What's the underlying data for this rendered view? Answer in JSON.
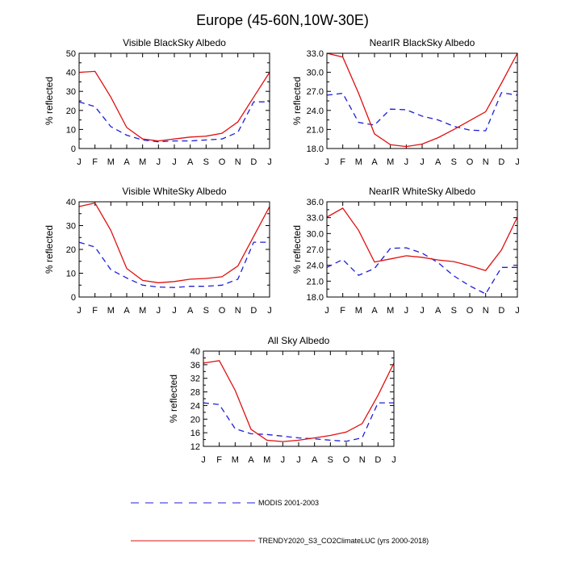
{
  "title": "Europe (45-60N,10W-30E)",
  "months": [
    "J",
    "F",
    "M",
    "A",
    "M",
    "J",
    "J",
    "A",
    "S",
    "O",
    "N",
    "D",
    "J"
  ],
  "colors": {
    "modis": "#1f1fd6",
    "trendy": "#e01010",
    "axis": "#000000"
  },
  "legend": [
    {
      "label": "MODIS 2001-2003",
      "style": "dashed",
      "color": "#1f1fd6"
    },
    {
      "label": "TRENDY2020_S3_CO2ClimateLUC (yrs 2000-2018)",
      "style": "solid",
      "color": "#e01010"
    }
  ],
  "chart_data": [
    {
      "type": "line",
      "title": "Visible BlackSky Albedo",
      "ylabel": "% reflected",
      "categories": [
        "J",
        "F",
        "M",
        "A",
        "M",
        "J",
        "J",
        "A",
        "S",
        "O",
        "N",
        "D",
        "J"
      ],
      "ylim": [
        0,
        50
      ],
      "yticks": [
        0,
        10,
        20,
        30,
        40,
        50
      ],
      "ytick_labels": [
        "0",
        "10",
        "20",
        "30",
        "40",
        "50"
      ],
      "series": [
        {
          "name": "MODIS 2001-2003",
          "values": [
            24.5,
            22,
            11.5,
            7,
            4.5,
            3.5,
            4,
            4,
            4.5,
            5,
            8.5,
            24.5,
            24.5
          ]
        },
        {
          "name": "TRENDY2020_S3_CO2ClimateLUC (yrs 2000-2018)",
          "values": [
            40,
            40.5,
            27,
            11,
            5,
            4,
            5,
            6,
            6.5,
            8,
            14,
            27,
            40
          ]
        }
      ]
    },
    {
      "type": "line",
      "title": "NearIR BlackSky Albedo",
      "ylabel": "% reflected",
      "categories": [
        "J",
        "F",
        "M",
        "A",
        "M",
        "J",
        "J",
        "A",
        "S",
        "O",
        "N",
        "D",
        "J"
      ],
      "ylim": [
        18,
        33
      ],
      "yticks": [
        18,
        21,
        24,
        27,
        30,
        33
      ],
      "ytick_labels": [
        "18.0",
        "21.0",
        "24.0",
        "27.0",
        "30.0",
        "33.0"
      ],
      "series": [
        {
          "name": "MODIS 2001-2003",
          "values": [
            26.4,
            26.7,
            22.1,
            21.7,
            24.2,
            24.1,
            23.1,
            22.5,
            21.5,
            20.9,
            20.8,
            26.8,
            26.4
          ]
        },
        {
          "name": "TRENDY2020_S3_CO2ClimateLUC (yrs 2000-2018)",
          "values": [
            33,
            32.4,
            26.7,
            20.3,
            18.6,
            18.3,
            18.7,
            19.7,
            21,
            22.4,
            23.8,
            28.3,
            33
          ]
        }
      ]
    },
    {
      "type": "line",
      "title": "Visible WhiteSky Albedo",
      "ylabel": "% reflected",
      "categories": [
        "J",
        "F",
        "M",
        "A",
        "M",
        "J",
        "J",
        "A",
        "S",
        "O",
        "N",
        "D",
        "J"
      ],
      "ylim": [
        0,
        40
      ],
      "yticks": [
        0,
        10,
        20,
        30,
        40
      ],
      "ytick_labels": [
        "0",
        "10",
        "20",
        "30",
        "40"
      ],
      "series": [
        {
          "name": "MODIS 2001-2003",
          "values": [
            23,
            21,
            11.5,
            8,
            5,
            4.2,
            4,
            4.5,
            4.5,
            5,
            7.5,
            23,
            23
          ]
        },
        {
          "name": "TRENDY2020_S3_CO2ClimateLUC (yrs 2000-2018)",
          "values": [
            38,
            39.5,
            28,
            12,
            7,
            6,
            6.5,
            7.5,
            7.8,
            8.5,
            13,
            25.5,
            38
          ]
        }
      ]
    },
    {
      "type": "line",
      "title": "NearIR WhiteSky Albedo",
      "ylabel": "% reflected",
      "categories": [
        "J",
        "F",
        "M",
        "A",
        "M",
        "J",
        "J",
        "A",
        "S",
        "O",
        "N",
        "D",
        "J"
      ],
      "ylim": [
        18,
        36
      ],
      "yticks": [
        18,
        21,
        24,
        27,
        30,
        33,
        36
      ],
      "ytick_labels": [
        "18.0",
        "21.0",
        "24.0",
        "27.0",
        "30.0",
        "33.0",
        "36.0"
      ],
      "series": [
        {
          "name": "MODIS 2001-2003",
          "values": [
            23.6,
            25.1,
            22.1,
            23.4,
            27.2,
            27.3,
            26.3,
            24.5,
            22,
            20.1,
            18.6,
            23.6,
            23.6
          ]
        },
        {
          "name": "TRENDY2020_S3_CO2ClimateLUC (yrs 2000-2018)",
          "values": [
            33.1,
            34.8,
            30.6,
            24.6,
            25.2,
            25.8,
            25.5,
            25,
            24.7,
            23.9,
            23,
            26.9,
            33.1
          ]
        }
      ]
    },
    {
      "type": "line",
      "title": "All Sky Albedo",
      "ylabel": "% reflected",
      "categories": [
        "J",
        "F",
        "M",
        "A",
        "M",
        "J",
        "J",
        "A",
        "S",
        "O",
        "N",
        "D",
        "J"
      ],
      "ylim": [
        12,
        40
      ],
      "yticks": [
        12,
        16,
        20,
        24,
        28,
        32,
        36,
        40
      ],
      "ytick_labels": [
        "12",
        "16",
        "20",
        "24",
        "28",
        "32",
        "36",
        "40"
      ],
      "series": [
        {
          "name": "MODIS 2001-2003",
          "values": [
            24.8,
            24.3,
            17.2,
            15.7,
            15.5,
            15,
            14.5,
            14.2,
            13.8,
            13.5,
            14.5,
            24.8,
            24.8
          ]
        },
        {
          "name": "TRENDY2020_S3_CO2ClimateLUC (yrs 2000-2018)",
          "values": [
            36.5,
            37.2,
            28.5,
            17,
            13.8,
            13.4,
            13.8,
            14.5,
            15.2,
            16.2,
            18.7,
            27,
            36.5
          ]
        }
      ]
    }
  ]
}
